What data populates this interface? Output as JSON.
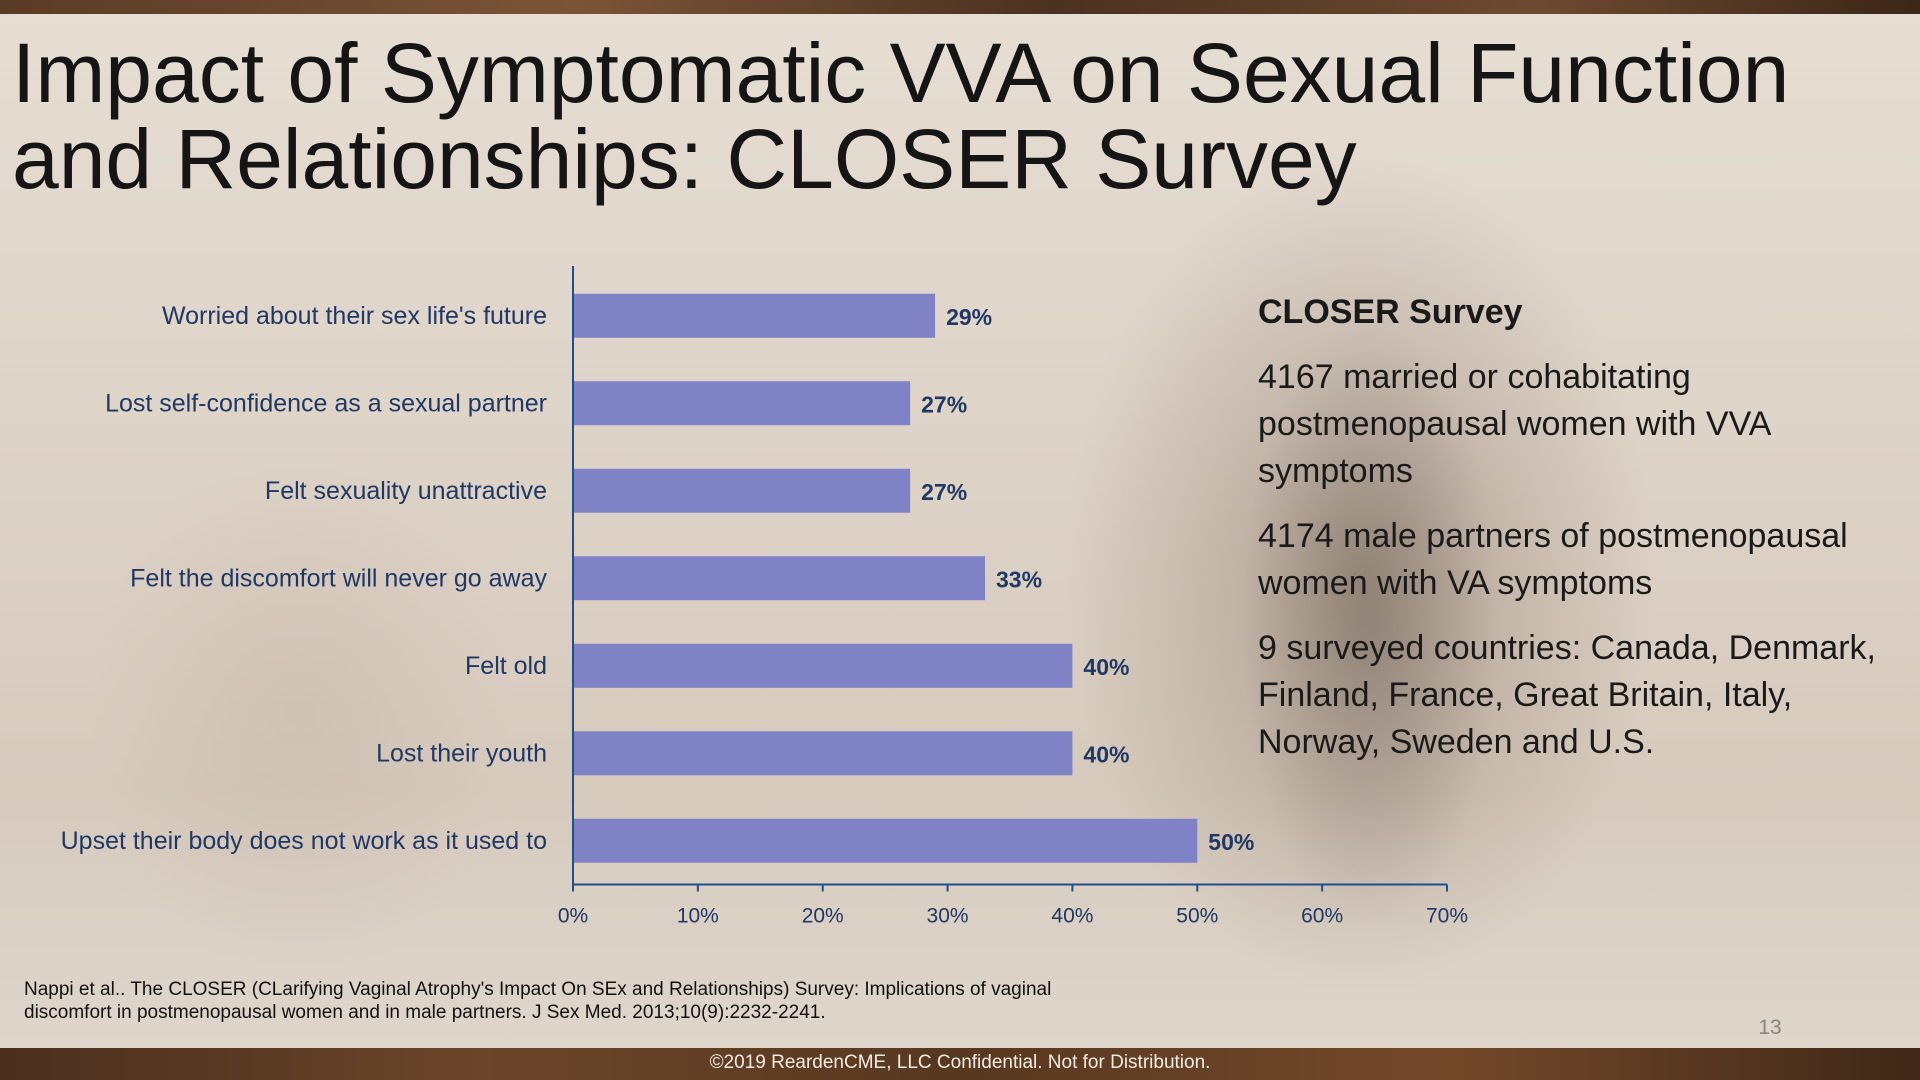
{
  "title_lines": [
    "Impact of Symptomatic VVA on Sexual Function",
    "and Relationships: CLOSER Survey"
  ],
  "info": {
    "heading": "CLOSER Survey",
    "paragraphs": [
      "4167 married or cohabitating postmenopausal women with VVA symptoms",
      "4174 male partners of postmenopausal women with VA symptoms",
      "9 surveyed countries: Canada, Denmark, Finland, France, Great Britain, Italy, Norway, Sweden and U.S."
    ]
  },
  "citation": "Nappi et al.. The CLOSER (CLarifying Vaginal Atrophy's Impact On SEx and Relationships) Survey: Implications of vaginal discomfort in postmenopausal women and in male partners. J Sex Med. 2013;10(9):2232-2241.",
  "page_number": "13",
  "footer": "©2019 ReardenCME, LLC  Confidential. Not for Distribution.",
  "colors": {
    "bar": "#7f82c4",
    "text_dark_blue": "#1f3864",
    "axis": "#1f4e8c"
  },
  "chart_data": {
    "type": "bar",
    "orientation": "horizontal",
    "categories": [
      "Worried about their sex life's future",
      "Lost self-confidence as a sexual partner",
      "Felt sexuality unattractive",
      "Felt the discomfort will never go away",
      "Felt old",
      "Lost their youth",
      "Upset their body does not work as it used to"
    ],
    "values": [
      29,
      27,
      27,
      33,
      40,
      40,
      50
    ],
    "data_labels": [
      "29%",
      "27%",
      "27%",
      "33%",
      "40%",
      "40%",
      "50%"
    ],
    "xlim": [
      0,
      70
    ],
    "x_ticks": [
      0,
      10,
      20,
      30,
      40,
      50,
      60,
      70
    ],
    "x_tick_labels": [
      "0%",
      "10%",
      "20%",
      "30%",
      "40%",
      "50%",
      "60%",
      "70%"
    ],
    "grid": false,
    "legend": "none"
  }
}
